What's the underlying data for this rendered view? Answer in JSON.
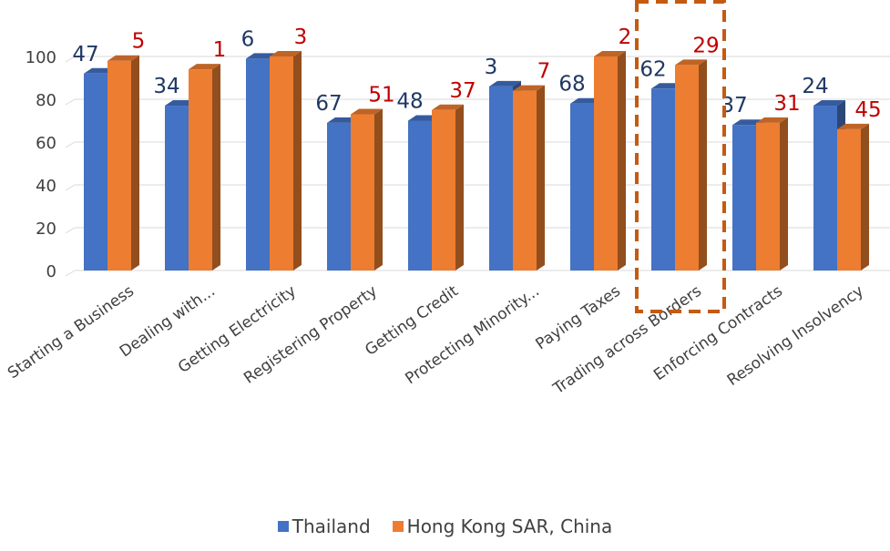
{
  "chart_data": {
    "type": "bar",
    "ylim": [
      0,
      100
    ],
    "yticks": [
      0,
      20,
      40,
      60,
      80,
      100
    ],
    "grid": true,
    "legend_position": "bottom",
    "categories": [
      "Starting a Business",
      "Dealing with...",
      "Getting Electricity",
      "Registering Property",
      "Getting Credit",
      "Protecting Minority...",
      "Paying Taxes",
      "Trading across Borders",
      "Enforcing Contracts",
      "Resolving Insolvency"
    ],
    "series": [
      {
        "name": "Thailand",
        "color": "#4472C4",
        "values": [
          92,
          77,
          99,
          69,
          70,
          86,
          78,
          85,
          68,
          77
        ],
        "rank_labels": [
          "47",
          "34",
          "6",
          "67",
          "48",
          "3",
          "68",
          "62",
          "37",
          "24"
        ],
        "label_color": "#1F3864"
      },
      {
        "name": "Hong Kong SAR, China",
        "color": "#ED7D31",
        "values": [
          98,
          94,
          100,
          73,
          75,
          84,
          100,
          96,
          69,
          66
        ],
        "rank_labels": [
          "5",
          "1",
          "3",
          "51",
          "37",
          "7",
          "2",
          "29",
          "31",
          "45"
        ],
        "label_color": "#C00000"
      }
    ],
    "highlight": {
      "category": "Trading across Borders",
      "style": "dashed-box",
      "color": "#C55A11"
    }
  }
}
